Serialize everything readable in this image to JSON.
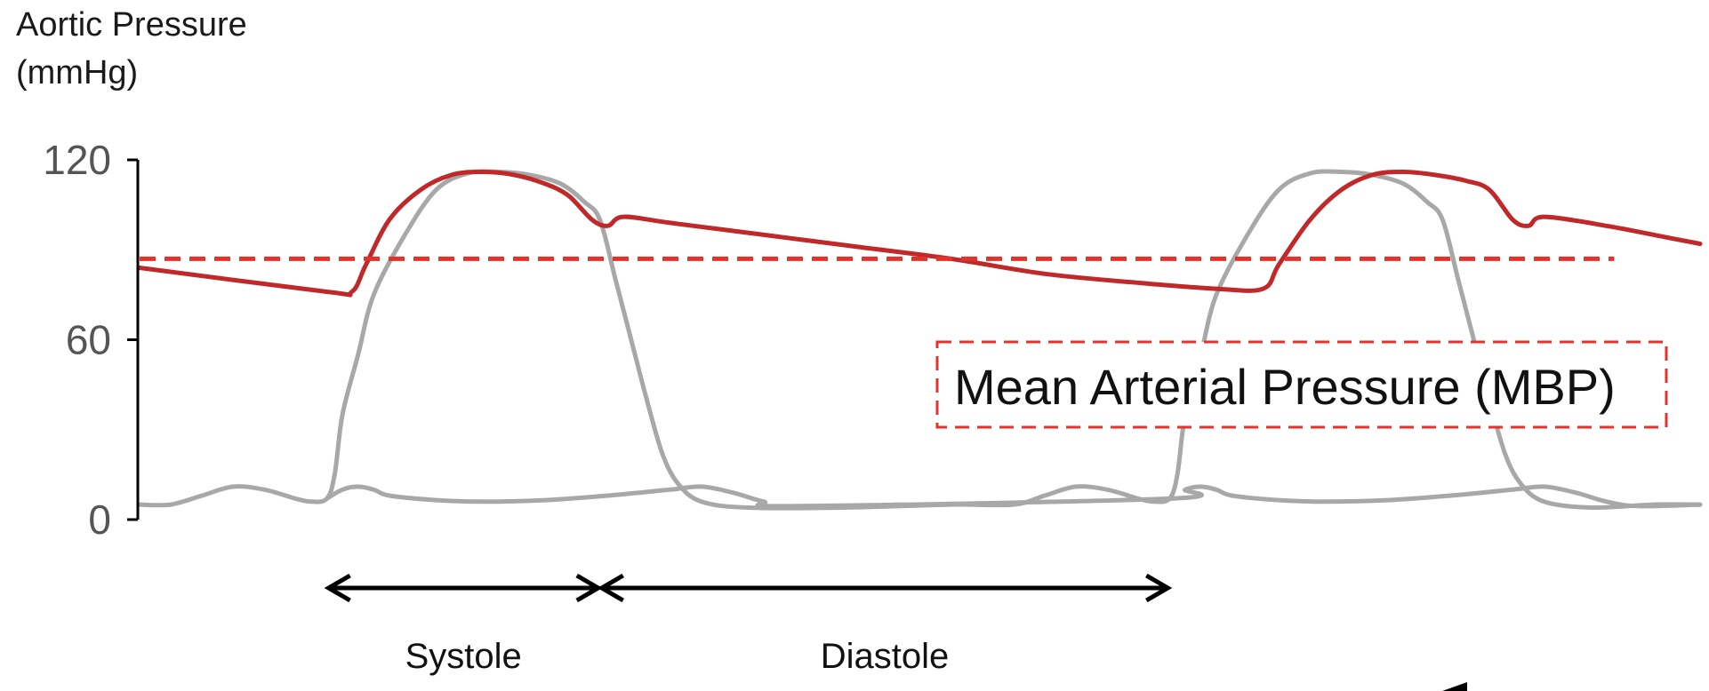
{
  "chart_data": {
    "type": "line",
    "ylabel_lines": [
      "Aortic Pressure",
      "(mmHg)"
    ],
    "y_ticks": [
      {
        "value": 120,
        "label": "120"
      },
      {
        "value": 60,
        "label": "60"
      },
      {
        "value": 0,
        "label": "0"
      }
    ],
    "ylim": [
      0,
      120
    ],
    "x_range": [
      0,
      100
    ],
    "grid": false,
    "colors": {
      "aortic": "#c0282a",
      "ventricular": "#a8a8a8",
      "mean": "#e0332c",
      "axis": "#000000",
      "arrow": "#000000"
    },
    "series": [
      {
        "key": "aortic",
        "values": [
          [
            0,
            84
          ],
          [
            12,
            76
          ],
          [
            13.6,
            76
          ],
          [
            14.5,
            85
          ],
          [
            16,
            100
          ],
          [
            18,
            110
          ],
          [
            20,
            115
          ],
          [
            22,
            116
          ],
          [
            24,
            115
          ],
          [
            26,
            112
          ],
          [
            27.5,
            108
          ],
          [
            29,
            100
          ],
          [
            30,
            98
          ],
          [
            31,
            101
          ],
          [
            34,
            99
          ],
          [
            40,
            95
          ],
          [
            46,
            91
          ],
          [
            52,
            87
          ],
          [
            58,
            82
          ],
          [
            64,
            79
          ],
          [
            69,
            77
          ],
          [
            72,
            77
          ],
          [
            73,
            85
          ],
          [
            75,
            100
          ],
          [
            77,
            110
          ],
          [
            79,
            115
          ],
          [
            81,
            116
          ],
          [
            83,
            115
          ],
          [
            85,
            113
          ],
          [
            86.5,
            110
          ],
          [
            88,
            100
          ],
          [
            89,
            98
          ],
          [
            90,
            101
          ],
          [
            94,
            98
          ],
          [
            98,
            94
          ],
          [
            100,
            92
          ]
        ]
      },
      {
        "key": "ventricular",
        "values": [
          [
            0,
            5
          ],
          [
            2,
            5
          ],
          [
            4,
            8
          ],
          [
            6,
            11
          ],
          [
            8,
            10
          ],
          [
            10,
            7
          ],
          [
            11,
            6
          ],
          [
            12,
            7
          ],
          [
            12.5,
            15
          ],
          [
            13,
            35
          ],
          [
            14,
            55
          ],
          [
            15,
            75
          ],
          [
            17,
            95
          ],
          [
            19,
            110
          ],
          [
            21,
            115.5
          ],
          [
            23,
            116
          ],
          [
            25,
            115
          ],
          [
            27,
            112
          ],
          [
            28.5,
            106
          ],
          [
            29.5,
            100
          ],
          [
            30.5,
            80
          ],
          [
            31.5,
            60
          ],
          [
            32.5,
            40
          ],
          [
            33.5,
            22
          ],
          [
            34.5,
            12
          ],
          [
            36,
            6
          ],
          [
            39,
            4
          ],
          [
            45,
            4
          ],
          [
            52,
            5
          ],
          [
            56,
            5
          ],
          [
            58,
            8
          ],
          [
            60,
            11
          ],
          [
            62,
            10
          ],
          [
            64,
            7
          ],
          [
            65,
            6
          ],
          [
            66,
            7
          ],
          [
            66.5,
            15
          ],
          [
            67,
            35
          ],
          [
            68,
            55
          ],
          [
            69,
            75
          ],
          [
            71,
            95
          ],
          [
            73,
            110
          ],
          [
            75,
            115.5
          ],
          [
            77,
            116
          ],
          [
            79,
            115
          ],
          [
            81,
            112
          ],
          [
            82.5,
            106
          ],
          [
            83.5,
            100
          ],
          [
            84.5,
            80
          ],
          [
            85.5,
            60
          ],
          [
            86.5,
            40
          ],
          [
            87.5,
            22
          ],
          [
            88.5,
            12
          ],
          [
            90,
            6
          ],
          [
            93,
            4
          ],
          [
            97,
            5
          ],
          [
            100,
            5
          ]
        ]
      },
      {
        "key": "ventricular-baseline",
        "values": [
          [
            12,
            7
          ],
          [
            13,
            10
          ],
          [
            14,
            11
          ],
          [
            15,
            10
          ],
          [
            16,
            8
          ],
          [
            19,
            6.5
          ],
          [
            22,
            6
          ],
          [
            26,
            6.5
          ],
          [
            30,
            8
          ],
          [
            34,
            10
          ],
          [
            36,
            11
          ],
          [
            38,
            9
          ],
          [
            40,
            6
          ],
          [
            42,
            4.5
          ],
          [
            66,
            7
          ],
          [
            67,
            10
          ],
          [
            68,
            11
          ],
          [
            69,
            10
          ],
          [
            70,
            8
          ],
          [
            73,
            6.5
          ],
          [
            76,
            6
          ],
          [
            80,
            6.5
          ],
          [
            84,
            8
          ],
          [
            88,
            10
          ],
          [
            90,
            11
          ],
          [
            92,
            9
          ],
          [
            94,
            6
          ],
          [
            96,
            4.5
          ],
          [
            100,
            5
          ]
        ]
      }
    ],
    "mean_line": {
      "value": 87,
      "x_end": 94.5
    },
    "phase_arrows": [
      {
        "label": "Systole",
        "x_start": 12,
        "x_end": 29.5
      },
      {
        "label": "Diastole",
        "x_start": 29.5,
        "x_end": 66
      }
    ],
    "annotation_label": "Mean Arterial Pressure (MBP)"
  }
}
